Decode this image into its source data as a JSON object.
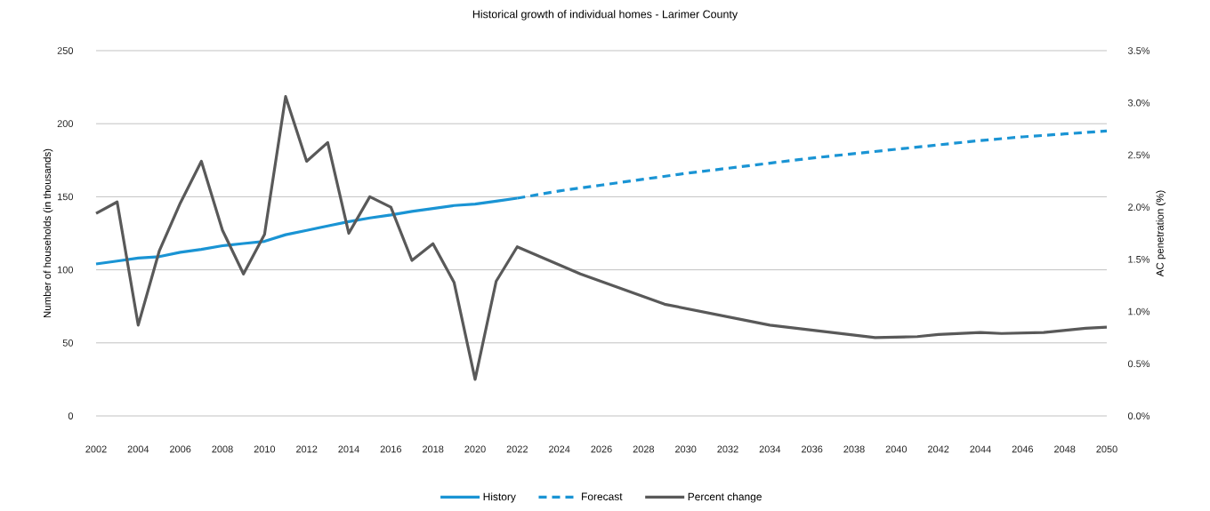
{
  "chart_data": {
    "type": "line",
    "title": "Historical growth of individual homes - Larimer County",
    "ylabel": "Number of households (in thousands)",
    "y2label": "AC penetration (%)",
    "series": [
      {
        "name": "History",
        "color": "#1a94d4",
        "line_style": "solid",
        "x": [
          2002,
          2003,
          2004,
          2005,
          2006,
          2007,
          2008,
          2009,
          2010,
          2011,
          2012,
          2013,
          2014,
          2015,
          2016,
          2017,
          2018,
          2019,
          2020,
          2021,
          2022
        ],
        "values": [
          104,
          106,
          108,
          109,
          112,
          114,
          116.5,
          118,
          119.5,
          124,
          127,
          130,
          133,
          135.5,
          137.5,
          140,
          142,
          144,
          145,
          147,
          149
        ]
      },
      {
        "name": "Forecast",
        "color": "#1a94d4",
        "line_style": "dashed",
        "x": [
          2022,
          2024,
          2026,
          2028,
          2030,
          2032,
          2034,
          2036,
          2038,
          2040,
          2042,
          2044,
          2046,
          2048,
          2050
        ],
        "values": [
          149,
          154,
          158,
          162,
          166,
          169.5,
          173,
          176.5,
          179.5,
          182.5,
          185.5,
          188.5,
          191,
          193,
          195
        ]
      },
      {
        "name": "Percent change",
        "color": "#595959",
        "line_style": "solid",
        "axis": "y2",
        "x": [
          2002,
          2003,
          2004,
          2005,
          2006,
          2007,
          2008,
          2009,
          2010,
          2011,
          2012,
          2013,
          2014,
          2015,
          2016,
          2017,
          2018,
          2019,
          2020,
          2021,
          2022,
          2025,
          2029,
          2034,
          2039,
          2041,
          2042,
          2044,
          2045,
          2047,
          2049,
          2050
        ],
        "values": [
          1.94,
          2.05,
          0.87,
          1.58,
          2.04,
          2.44,
          1.78,
          1.36,
          1.74,
          3.06,
          2.44,
          2.62,
          1.75,
          2.1,
          2.0,
          1.49,
          1.65,
          1.28,
          0.35,
          1.29,
          1.62,
          1.36,
          1.07,
          0.87,
          0.75,
          0.76,
          0.78,
          0.8,
          0.79,
          0.8,
          0.84,
          0.85
        ]
      }
    ],
    "xlim": [
      2002,
      2050
    ],
    "xticks": [
      2002,
      2004,
      2006,
      2008,
      2010,
      2012,
      2014,
      2016,
      2018,
      2020,
      2022,
      2024,
      2026,
      2028,
      2030,
      2032,
      2034,
      2036,
      2038,
      2040,
      2042,
      2044,
      2046,
      2048,
      2050
    ],
    "ylim": [
      0,
      250
    ],
    "yticks": [
      0,
      50,
      100,
      150,
      200,
      250
    ],
    "y2lim": [
      0,
      3.5
    ],
    "y2ticks": [
      {
        "value": 0,
        "label": "0.0%"
      },
      {
        "value": 0.5,
        "label": "0.5%"
      },
      {
        "value": 1,
        "label": "1.0%"
      },
      {
        "value": 1.5,
        "label": "1.5%"
      },
      {
        "value": 2,
        "label": "2.0%"
      },
      {
        "value": 2.5,
        "label": "2.5%"
      },
      {
        "value": 3,
        "label": "3.0%"
      },
      {
        "value": 3.5,
        "label": "3.5%"
      }
    ],
    "grid": "y",
    "legend": "bottom"
  }
}
